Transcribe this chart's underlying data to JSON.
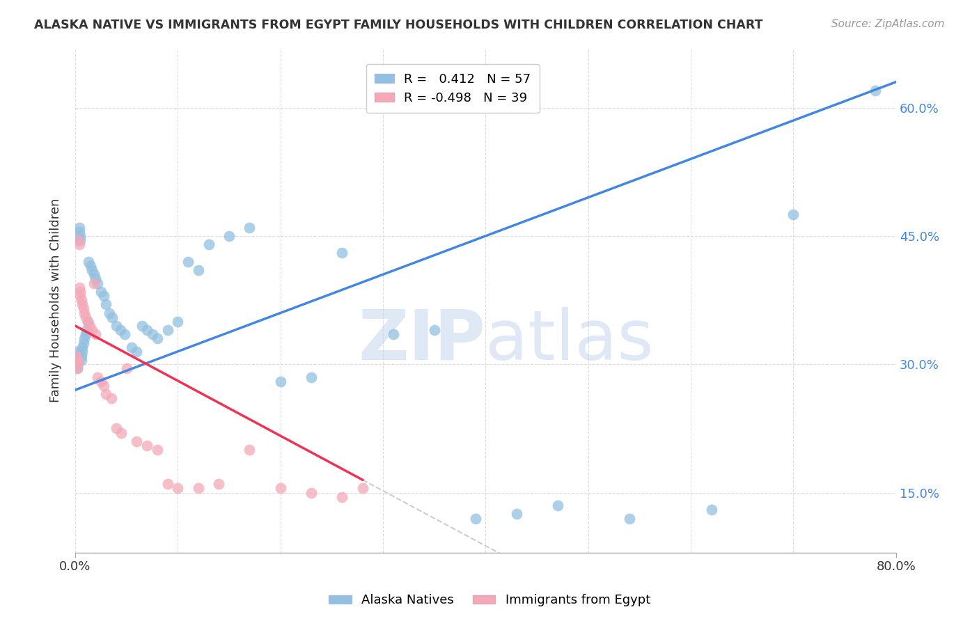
{
  "title": "ALASKA NATIVE VS IMMIGRANTS FROM EGYPT FAMILY HOUSEHOLDS WITH CHILDREN CORRELATION CHART",
  "source": "Source: ZipAtlas.com",
  "ylabel": "Family Households with Children",
  "ytick_vals": [
    0.15,
    0.3,
    0.45,
    0.6
  ],
  "ytick_labels": [
    "15.0%",
    "30.0%",
    "45.0%",
    "60.0%"
  ],
  "xlim": [
    0.0,
    0.8
  ],
  "ylim": [
    0.08,
    0.67
  ],
  "r_blue": 0.412,
  "n_blue": 57,
  "r_pink": -0.498,
  "n_pink": 39,
  "blue_color": "#92C0E0",
  "pink_color": "#F4A8B8",
  "trend_blue": "#4488DD",
  "trend_pink": "#EE3355",
  "trend_dashed_color": "#CCCCCC",
  "blue_scatter_x": [
    0.001,
    0.002,
    0.002,
    0.003,
    0.003,
    0.004,
    0.004,
    0.005,
    0.005,
    0.006,
    0.006,
    0.007,
    0.007,
    0.008,
    0.009,
    0.01,
    0.011,
    0.012,
    0.013,
    0.015,
    0.016,
    0.018,
    0.02,
    0.022,
    0.025,
    0.028,
    0.03,
    0.033,
    0.036,
    0.04,
    0.044,
    0.048,
    0.055,
    0.06,
    0.065,
    0.07,
    0.075,
    0.08,
    0.09,
    0.1,
    0.11,
    0.12,
    0.13,
    0.15,
    0.17,
    0.2,
    0.23,
    0.26,
    0.31,
    0.35,
    0.39,
    0.43,
    0.47,
    0.54,
    0.62,
    0.7,
    0.78
  ],
  "blue_scatter_y": [
    0.305,
    0.31,
    0.295,
    0.315,
    0.3,
    0.46,
    0.455,
    0.45,
    0.445,
    0.31,
    0.305,
    0.32,
    0.315,
    0.325,
    0.33,
    0.335,
    0.34,
    0.35,
    0.42,
    0.415,
    0.41,
    0.405,
    0.4,
    0.395,
    0.385,
    0.38,
    0.37,
    0.36,
    0.355,
    0.345,
    0.34,
    0.335,
    0.32,
    0.315,
    0.345,
    0.34,
    0.335,
    0.33,
    0.34,
    0.35,
    0.42,
    0.41,
    0.44,
    0.45,
    0.46,
    0.28,
    0.285,
    0.43,
    0.335,
    0.34,
    0.12,
    0.125,
    0.135,
    0.12,
    0.13,
    0.475,
    0.62
  ],
  "pink_scatter_x": [
    0.001,
    0.002,
    0.002,
    0.003,
    0.003,
    0.004,
    0.004,
    0.005,
    0.005,
    0.006,
    0.007,
    0.008,
    0.009,
    0.01,
    0.012,
    0.014,
    0.016,
    0.018,
    0.02,
    0.022,
    0.025,
    0.028,
    0.03,
    0.035,
    0.04,
    0.045,
    0.05,
    0.06,
    0.07,
    0.08,
    0.09,
    0.1,
    0.12,
    0.14,
    0.17,
    0.2,
    0.23,
    0.26,
    0.28
  ],
  "pink_scatter_y": [
    0.31,
    0.3,
    0.295,
    0.305,
    0.445,
    0.44,
    0.39,
    0.385,
    0.38,
    0.375,
    0.37,
    0.365,
    0.36,
    0.355,
    0.35,
    0.345,
    0.34,
    0.395,
    0.335,
    0.285,
    0.28,
    0.275,
    0.265,
    0.26,
    0.225,
    0.22,
    0.295,
    0.21,
    0.205,
    0.2,
    0.16,
    0.155,
    0.155,
    0.16,
    0.2,
    0.155,
    0.15,
    0.145,
    0.155
  ],
  "watermark_zip": "ZIP",
  "watermark_atlas": "atlas",
  "background_color": "#FFFFFF",
  "grid_color": "#DDDDDD",
  "tick_color": "#4488DD",
  "axis_color": "#AAAAAA"
}
